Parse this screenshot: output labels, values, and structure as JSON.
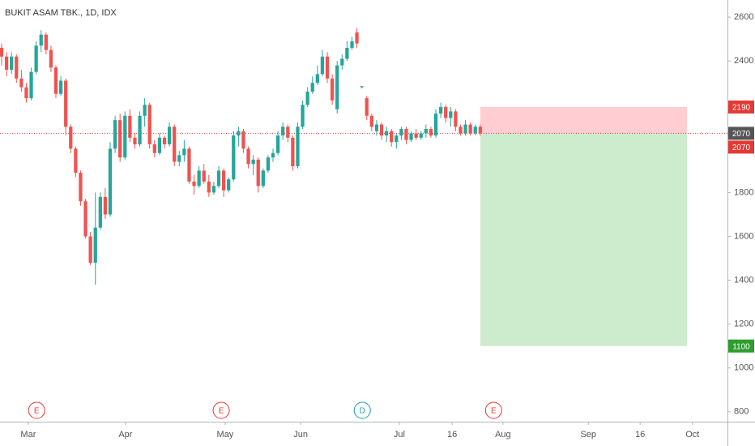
{
  "chart_data": {
    "type": "candlestick",
    "title": "BUKIT ASAM TBK., 1D, IDX",
    "up_color": "#26a69a",
    "down_color": "#ef5350",
    "x": [
      0,
      1,
      2,
      3,
      4,
      5,
      6,
      7,
      8,
      9,
      10,
      11,
      12,
      13,
      14,
      15,
      16,
      17,
      18,
      19,
      20,
      21,
      22,
      23,
      24,
      25,
      26,
      27,
      28,
      29,
      30,
      31,
      32,
      33,
      34,
      35,
      36,
      37,
      38,
      39,
      40,
      41,
      42,
      43,
      44,
      45,
      46,
      47,
      48,
      49,
      50,
      51,
      52,
      53,
      54,
      55,
      56,
      57,
      58,
      59,
      60,
      61,
      62,
      63,
      64,
      65,
      66,
      67,
      68,
      69,
      70,
      71,
      72,
      73,
      74,
      75,
      76,
      77,
      78,
      79,
      80,
      81,
      82,
      83,
      84,
      85,
      86,
      87,
      88,
      89,
      90,
      91,
      92,
      93,
      94,
      95,
      96,
      97
    ],
    "candles": [
      [
        2460,
        2480,
        2380,
        2420
      ],
      [
        2420,
        2440,
        2330,
        2360
      ],
      [
        2360,
        2440,
        2340,
        2420
      ],
      [
        2420,
        2430,
        2300,
        2320
      ],
      [
        2320,
        2360,
        2260,
        2280
      ],
      [
        2280,
        2300,
        2210,
        2230
      ],
      [
        2230,
        2370,
        2220,
        2350
      ],
      [
        2350,
        2490,
        2340,
        2470
      ],
      [
        2470,
        2540,
        2440,
        2520
      ],
      [
        2520,
        2530,
        2430,
        2450
      ],
      [
        2450,
        2470,
        2350,
        2370
      ],
      [
        2370,
        2380,
        2230,
        2250
      ],
      [
        2250,
        2330,
        2240,
        2310
      ],
      [
        2310,
        2320,
        2060,
        2100
      ],
      [
        2100,
        2110,
        1980,
        2000
      ],
      [
        2000,
        2010,
        1870,
        1890
      ],
      [
        1890,
        1900,
        1740,
        1760
      ],
      [
        1760,
        1770,
        1590,
        1600
      ],
      [
        1600,
        1620,
        1470,
        1480
      ],
      [
        1480,
        1800,
        1380,
        1640
      ],
      [
        1640,
        1800,
        1630,
        1780
      ],
      [
        1780,
        1820,
        1680,
        1700
      ],
      [
        1700,
        2030,
        1690,
        2000
      ],
      [
        2000,
        2150,
        1980,
        2130
      ],
      [
        2130,
        2160,
        1940,
        1960
      ],
      [
        1960,
        2170,
        1950,
        2150
      ],
      [
        2150,
        2180,
        2030,
        2050
      ],
      [
        2050,
        2070,
        2000,
        2020
      ],
      [
        2020,
        2170,
        2010,
        2150
      ],
      [
        2150,
        2230,
        2100,
        2200
      ],
      [
        2200,
        2210,
        2000,
        2020
      ],
      [
        2020,
        2040,
        1960,
        1980
      ],
      [
        1980,
        2070,
        1970,
        2050
      ],
      [
        2050,
        2060,
        2000,
        2020
      ],
      [
        2020,
        2120,
        2010,
        2100
      ],
      [
        2100,
        2110,
        1920,
        1940
      ],
      [
        1940,
        1990,
        1920,
        1970
      ],
      [
        1970,
        2040,
        1940,
        2000
      ],
      [
        2000,
        2010,
        1840,
        1850
      ],
      [
        1850,
        1880,
        1790,
        1830
      ],
      [
        1830,
        1920,
        1820,
        1900
      ],
      [
        1900,
        1930,
        1840,
        1850
      ],
      [
        1850,
        1880,
        1780,
        1800
      ],
      [
        1800,
        1850,
        1790,
        1830
      ],
      [
        1830,
        1920,
        1820,
        1900
      ],
      [
        1900,
        1910,
        1780,
        1810
      ],
      [
        1810,
        1870,
        1800,
        1860
      ],
      [
        1860,
        2080,
        1850,
        2060
      ],
      [
        2060,
        2100,
        2010,
        2080
      ],
      [
        2080,
        2090,
        1980,
        2000
      ],
      [
        2000,
        2010,
        1910,
        1930
      ],
      [
        1930,
        1970,
        1880,
        1950
      ],
      [
        1950,
        1960,
        1800,
        1830
      ],
      [
        1830,
        1910,
        1820,
        1900
      ],
      [
        1900,
        1970,
        1890,
        1960
      ],
      [
        1960,
        2000,
        1940,
        1980
      ],
      [
        1980,
        2080,
        1970,
        2060
      ],
      [
        2060,
        2120,
        2040,
        2100
      ],
      [
        2100,
        2110,
        2030,
        2050
      ],
      [
        2050,
        2060,
        1900,
        1920
      ],
      [
        1920,
        2120,
        1910,
        2100
      ],
      [
        2100,
        2220,
        2090,
        2200
      ],
      [
        2200,
        2280,
        2190,
        2260
      ],
      [
        2260,
        2330,
        2250,
        2300
      ],
      [
        2300,
        2380,
        2290,
        2340
      ],
      [
        2340,
        2450,
        2330,
        2420
      ],
      [
        2420,
        2440,
        2300,
        2320
      ],
      [
        2320,
        2340,
        2200,
        2220
      ],
      [
        2180,
        2400,
        2160,
        2380
      ],
      [
        2380,
        2430,
        2360,
        2410
      ],
      [
        2410,
        2490,
        2400,
        2460
      ],
      [
        2460,
        2510,
        2450,
        2490
      ],
      [
        2530,
        2550,
        2460,
        2480
      ],
      [
        2280,
        2285,
        2275,
        2285
      ],
      [
        2230,
        2240,
        2130,
        2150
      ],
      [
        2150,
        2160,
        2080,
        2100
      ],
      [
        2080,
        2130,
        2060,
        2110
      ],
      [
        2110,
        2120,
        2040,
        2060
      ],
      [
        2060,
        2100,
        2030,
        2080
      ],
      [
        2080,
        2090,
        2010,
        2030
      ],
      [
        2030,
        2070,
        2000,
        2060
      ],
      [
        2060,
        2100,
        2040,
        2090
      ],
      [
        2090,
        2100,
        2020,
        2040
      ],
      [
        2040,
        2080,
        2030,
        2070
      ],
      [
        2070,
        2090,
        2040,
        2050
      ],
      [
        2050,
        2080,
        2040,
        2070
      ],
      [
        2070,
        2110,
        2050,
        2090
      ],
      [
        2090,
        2100,
        2050,
        2060
      ],
      [
        2060,
        2180,
        2050,
        2160
      ],
      [
        2160,
        2210,
        2140,
        2190
      ],
      [
        2190,
        2200,
        2120,
        2140
      ],
      [
        2140,
        2190,
        2100,
        2170
      ],
      [
        2170,
        2180,
        2080,
        2100
      ],
      [
        2100,
        2110,
        2060,
        2070
      ],
      [
        2070,
        2130,
        2060,
        2110
      ],
      [
        2110,
        2120,
        2060,
        2070
      ],
      [
        2070,
        2110,
        2060,
        2100
      ],
      [
        2100,
        2110,
        2060,
        2070
      ]
    ],
    "xlim": [
      -0.33,
      147.1
    ],
    "xticks": [
      {
        "value": 5.4,
        "label": "Mar"
      },
      {
        "value": 25.1,
        "label": "Apr"
      },
      {
        "value": 45.3,
        "label": "May"
      },
      {
        "value": 60.6,
        "label": "Jun"
      },
      {
        "value": 80.6,
        "label": "Jul"
      },
      {
        "value": 91.3,
        "label": "16"
      },
      {
        "value": 101.6,
        "label": "Aug"
      },
      {
        "value": 118.9,
        "label": "Sep"
      },
      {
        "value": 129.4,
        "label": "16"
      },
      {
        "value": 140,
        "label": "Oct"
      }
    ],
    "ylim": [
      755,
      2678
    ],
    "yticks": [
      800,
      1000,
      1200,
      1400,
      1600,
      1800,
      2400,
      2600
    ],
    "last_price": 2070,
    "last_price_color": "#e53935",
    "position": {
      "entry": 2070,
      "stop": 2190,
      "target": 1100,
      "x_start": 97,
      "x_end": 138.9,
      "stop_color": "#ffcdd2",
      "target_color": "#cdebcd"
    },
    "price_labels": [
      {
        "value": 2190,
        "color": "#e53935"
      },
      {
        "value": 2070,
        "color": "#555555"
      },
      {
        "value": 2070,
        "color": "#e53935"
      },
      {
        "value": 1100,
        "color": "#2e9e2e"
      }
    ],
    "events": [
      {
        "x": 7.1,
        "label": "E",
        "color": "#e53935"
      },
      {
        "x": 44.5,
        "label": "E",
        "color": "#e53935"
      },
      {
        "x": 73.1,
        "label": "D",
        "color": "#1e9fb0"
      },
      {
        "x": 99.7,
        "label": "E",
        "color": "#e53935"
      }
    ]
  }
}
